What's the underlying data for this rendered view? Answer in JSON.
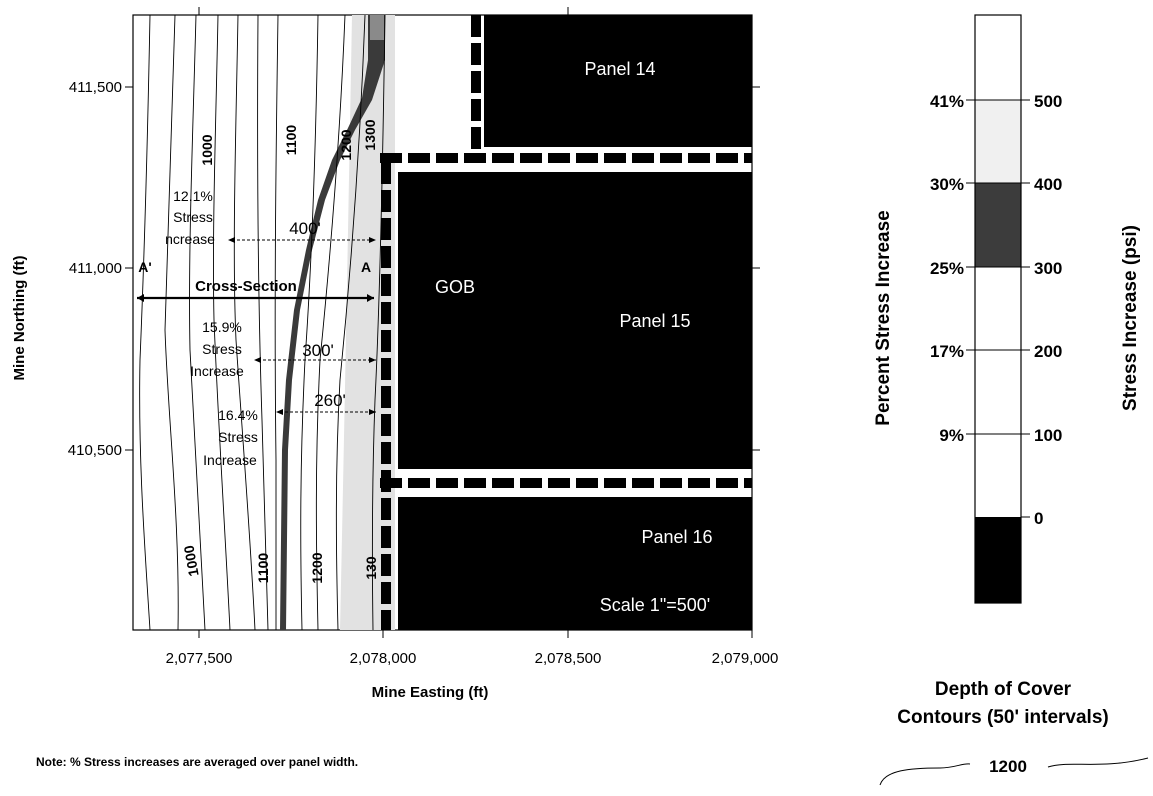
{
  "map": {
    "axes": {
      "x_label": "Mine Easting (ft)",
      "y_label": "Mine Northing (ft)",
      "x_ticks": [
        "2,077,500",
        "2,078,000",
        "2,078,500",
        "2,079,000"
      ],
      "y_ticks": [
        "411,500",
        "411,000",
        "410,500"
      ]
    },
    "panels": {
      "panel14": "Panel 14",
      "panel15": "Panel 15",
      "panel16": "Panel 16",
      "gob": "GOB",
      "scale": "Scale 1\"=500'"
    },
    "contour_labels": {
      "c1000_top": "1000",
      "c1100_top": "1100",
      "c1200_top": "1200",
      "c1300_top": "1300",
      "c1000_bottom": "1000",
      "c1100_bottom": "1100",
      "c1200_bottom": "1200",
      "c1300_bottom": "130"
    },
    "annotations": {
      "s1_pct": "12.1%",
      "s1_line1": "Stress",
      "s1_line2": "ncrease",
      "s1_dist": "400'",
      "cross_section": "Cross-Section",
      "a_left": "A'",
      "a_right": "A",
      "s2_pct": "15.9%",
      "s2_line1": "Stress",
      "s2_line2": "Increase",
      "s2_dist": "300'",
      "s3_pct": "16.4%",
      "s3_line1": "Stress",
      "s3_line2": "Increase",
      "s3_dist": "260'"
    },
    "note": "Note:  % Stress increases are averaged over panel width."
  },
  "legend": {
    "percent_title": "Percent Stress Increase",
    "psi_title": "Stress Increase (psi)",
    "percent_ticks": [
      "41%",
      "30%",
      "25%",
      "17%",
      "9%"
    ],
    "psi_ticks": [
      "500",
      "400",
      "300",
      "200",
      "100",
      "0"
    ],
    "bands": [
      {
        "range": "> 500",
        "color": "#ffffff"
      },
      {
        "range": "400-500",
        "color": "#f0f0f0"
      },
      {
        "range": "300-400",
        "color": "#3c3c3c"
      },
      {
        "range": "200-300",
        "color": "#ffffff"
      },
      {
        "range": "100-200",
        "color": "#ffffff"
      },
      {
        "range": "0-100",
        "color": "#ffffff"
      },
      {
        "range": "< 0",
        "color": "#000000"
      }
    ],
    "contour_title_line1": "Depth of Cover",
    "contour_title_line2": "Contours (50' intervals)",
    "contour_sample": "1200"
  }
}
